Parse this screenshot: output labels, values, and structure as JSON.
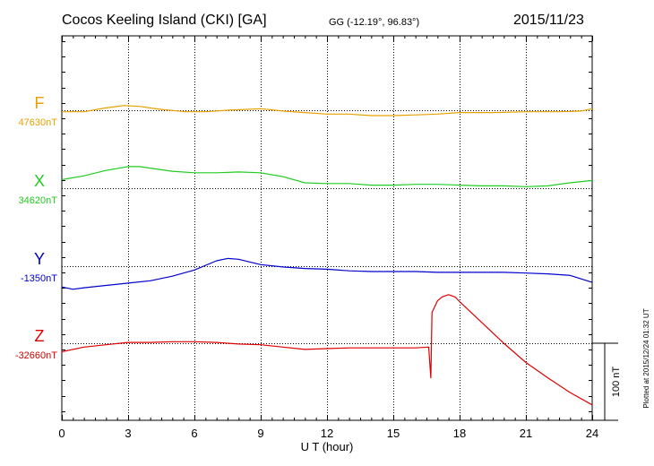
{
  "header": {
    "station": "Cocos Keeling Island (CKI)  [GA]",
    "coords": "GG (-12.19°,  96.83°)",
    "date": "2015/11/23"
  },
  "plotted_note": "Plotted at 2015/12/24 01:32 UT",
  "chart_data": {
    "type": "line",
    "xlabel": "U T (hour)",
    "xlim": [
      0,
      24
    ],
    "x_ticks": [
      "0",
      "3",
      "6",
      "9",
      "12",
      "15",
      "18",
      "21",
      "24"
    ],
    "scale_bar": "100 nT",
    "y_unit_note": "offset baselines, 100 nT per 86 px",
    "series": [
      {
        "name": "F",
        "baseline_label": "47630nT",
        "color": "#e8a000",
        "points": [
          [
            0,
            2
          ],
          [
            1,
            2
          ],
          [
            2,
            -3
          ],
          [
            2.8,
            -6
          ],
          [
            3.5,
            -5
          ],
          [
            4.5,
            -1
          ],
          [
            5.6,
            2
          ],
          [
            6.5,
            2
          ],
          [
            7.5,
            0
          ],
          [
            9,
            -2
          ],
          [
            10,
            1
          ],
          [
            11,
            3
          ],
          [
            12,
            5
          ],
          [
            13,
            5
          ],
          [
            14,
            7
          ],
          [
            15,
            7
          ],
          [
            16,
            6
          ],
          [
            17,
            5
          ],
          [
            18,
            3
          ],
          [
            19.5,
            3
          ],
          [
            21,
            2
          ],
          [
            22.5,
            2
          ],
          [
            23.5,
            1
          ],
          [
            24,
            -2
          ]
        ]
      },
      {
        "name": "X",
        "baseline_label": "34620nT",
        "color": "#22cc22",
        "points": [
          [
            0,
            -11
          ],
          [
            1,
            -16
          ],
          [
            2,
            -23
          ],
          [
            3,
            -28
          ],
          [
            3.5,
            -28
          ],
          [
            5,
            -22
          ],
          [
            6,
            -20
          ],
          [
            7,
            -20
          ],
          [
            8,
            -21
          ],
          [
            9,
            -20
          ],
          [
            10,
            -15
          ],
          [
            11,
            -7
          ],
          [
            12,
            -6
          ],
          [
            13,
            -6
          ],
          [
            14,
            -4
          ],
          [
            15,
            -4
          ],
          [
            16,
            -5
          ],
          [
            17,
            -5
          ],
          [
            18,
            -4
          ],
          [
            19,
            -3
          ],
          [
            20,
            -3
          ],
          [
            21,
            -2
          ],
          [
            22,
            -3
          ],
          [
            23,
            -7
          ],
          [
            24,
            -10
          ]
        ]
      },
      {
        "name": "Y",
        "baseline_label": "-1350nT",
        "color": "#0000cc",
        "points": [
          [
            0,
            27
          ],
          [
            0.5,
            30
          ],
          [
            1,
            28
          ],
          [
            2,
            25
          ],
          [
            3,
            22
          ],
          [
            4,
            19
          ],
          [
            5,
            13
          ],
          [
            6,
            5
          ],
          [
            7,
            -7
          ],
          [
            7.5,
            -10
          ],
          [
            8,
            -9
          ],
          [
            9,
            -2
          ],
          [
            10,
            1
          ],
          [
            11,
            3
          ],
          [
            12,
            4
          ],
          [
            13,
            6
          ],
          [
            14,
            7
          ],
          [
            15,
            7
          ],
          [
            16,
            7
          ],
          [
            17,
            8
          ],
          [
            18,
            8
          ],
          [
            19,
            8
          ],
          [
            20,
            8
          ],
          [
            21,
            9
          ],
          [
            22,
            10
          ],
          [
            23,
            12
          ],
          [
            24,
            21
          ]
        ]
      },
      {
        "name": "Z",
        "baseline_label": "-32660nT",
        "color": "#dd0000",
        "points": [
          [
            0,
            11
          ],
          [
            1,
            5
          ],
          [
            2,
            2
          ],
          [
            3,
            -1
          ],
          [
            4,
            -1
          ],
          [
            5,
            -2
          ],
          [
            6,
            -2
          ],
          [
            7,
            -1
          ],
          [
            8,
            1
          ],
          [
            9,
            2
          ],
          [
            10,
            5
          ],
          [
            11,
            8
          ],
          [
            12,
            7
          ],
          [
            13,
            6
          ],
          [
            14,
            6
          ],
          [
            15,
            6
          ],
          [
            16,
            6
          ],
          [
            16.6,
            5
          ],
          [
            16.7,
            45
          ],
          [
            16.75,
            -40
          ],
          [
            17,
            -55
          ],
          [
            17.2,
            -60
          ],
          [
            17.5,
            -63
          ],
          [
            17.8,
            -60
          ],
          [
            18,
            -54
          ],
          [
            19,
            -27
          ],
          [
            20,
            0
          ],
          [
            21,
            25
          ],
          [
            22,
            45
          ],
          [
            23,
            64
          ],
          [
            24,
            80
          ]
        ]
      }
    ]
  }
}
